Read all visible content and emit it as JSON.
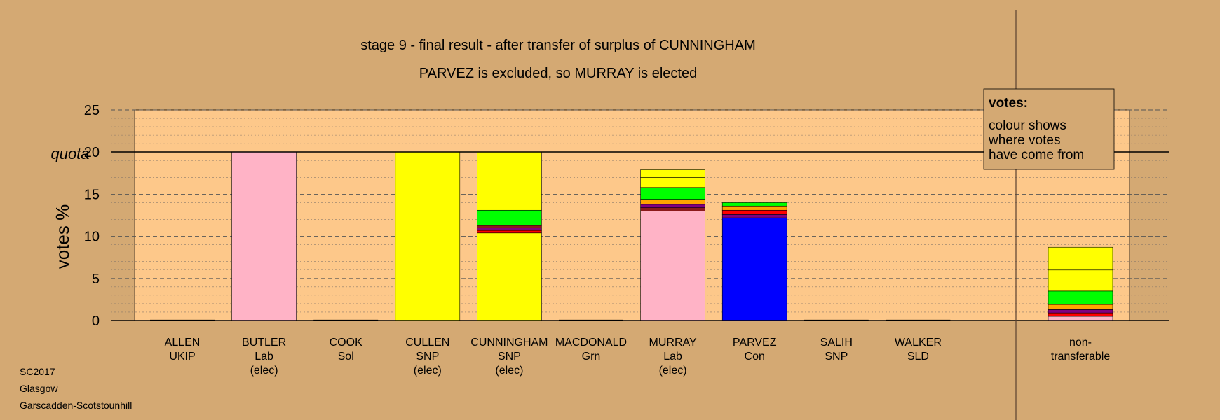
{
  "chart_data": {
    "type": "bar",
    "stacked": true,
    "title": "stage 9 - final result - after transfer of surplus of CUNNINGHAM",
    "subtitle": "PARVEZ is excluded, so MURRAY is elected",
    "ylabel": "votes %",
    "ylim": [
      0,
      25
    ],
    "yticks": [
      0,
      5,
      10,
      15,
      20,
      25
    ],
    "quota": 20,
    "quota_label": "quota",
    "grid": "dashed horizontal, minor every 1",
    "legend": {
      "position": "top-right",
      "title": "votes:",
      "lines": [
        "colour shows",
        "where votes",
        "have come from"
      ]
    },
    "footer": [
      "SC2017",
      "Glasgow",
      "Garscadden-Scotstounhill"
    ],
    "colors": {
      "page_background": "#d4a973",
      "plot_background": "#fdc88a",
      "Lab": "#ffb3c6",
      "SNP": "#ffff00",
      "Grn": "#00ff00",
      "Con": "#0000ff",
      "Sol": "#ff0000",
      "SLD": "#ffa500",
      "UKIP": "#800080",
      "brown": "#8b1a1a"
    },
    "candidates": [
      {
        "name": "ALLEN",
        "party": "UKIP",
        "status": "",
        "segments": []
      },
      {
        "name": "BUTLER",
        "party": "Lab",
        "status": "(elec)",
        "segments": [
          {
            "value": 20.0,
            "color": "#ffb3c6"
          }
        ]
      },
      {
        "name": "COOK",
        "party": "Sol",
        "status": "",
        "segments": []
      },
      {
        "name": "CULLEN",
        "party": "SNP",
        "status": "(elec)",
        "segments": [
          {
            "value": 20.0,
            "color": "#ffff00"
          }
        ]
      },
      {
        "name": "CUNNINGHAM",
        "party": "SNP",
        "status": "(elec)",
        "segments": [
          {
            "value": 10.4,
            "color": "#ffff00"
          },
          {
            "value": 0.3,
            "color": "#ff0000"
          },
          {
            "value": 0.3,
            "color": "#800080"
          },
          {
            "value": 0.3,
            "color": "#8b1a1a"
          },
          {
            "value": 1.8,
            "color": "#00ff00"
          },
          {
            "value": 6.9,
            "color": "#ffff00"
          }
        ]
      },
      {
        "name": "MACDONALD",
        "party": "Grn",
        "status": "",
        "segments": []
      },
      {
        "name": "MURRAY",
        "party": "Lab",
        "status": "(elec)",
        "segments": [
          {
            "value": 10.5,
            "color": "#ffb3c6"
          },
          {
            "value": 2.5,
            "color": "#ffb3c6"
          },
          {
            "value": 0.4,
            "color": "#8b1a1a"
          },
          {
            "value": 0.4,
            "color": "#800080"
          },
          {
            "value": 0.6,
            "color": "#ffa500"
          },
          {
            "value": 1.4,
            "color": "#00ff00"
          },
          {
            "value": 1.2,
            "color": "#ffff00"
          },
          {
            "value": 0.9,
            "color": "#ffff00"
          }
        ]
      },
      {
        "name": "PARVEZ",
        "party": "Con",
        "status": "",
        "segments": [
          {
            "value": 12.2,
            "color": "#0000ff"
          },
          {
            "value": 0.4,
            "color": "#800080"
          },
          {
            "value": 0.5,
            "color": "#ff0000"
          },
          {
            "value": 0.5,
            "color": "#ffa500"
          },
          {
            "value": 0.4,
            "color": "#00ff00"
          }
        ]
      },
      {
        "name": "SALIH",
        "party": "SNP",
        "status": "",
        "segments": []
      },
      {
        "name": "WALKER",
        "party": "SLD",
        "status": "",
        "segments": []
      }
    ],
    "nontransferable": {
      "label_lines": [
        "non-",
        "transferable"
      ],
      "segments": [
        {
          "value": 0.5,
          "color": "#ffb3c6"
        },
        {
          "value": 0.4,
          "color": "#ff0000"
        },
        {
          "value": 0.4,
          "color": "#800080"
        },
        {
          "value": 0.6,
          "color": "#ffa500"
        },
        {
          "value": 1.6,
          "color": "#00ff00"
        },
        {
          "value": 2.5,
          "color": "#ffff00"
        },
        {
          "value": 2.7,
          "color": "#ffff00"
        }
      ]
    }
  }
}
